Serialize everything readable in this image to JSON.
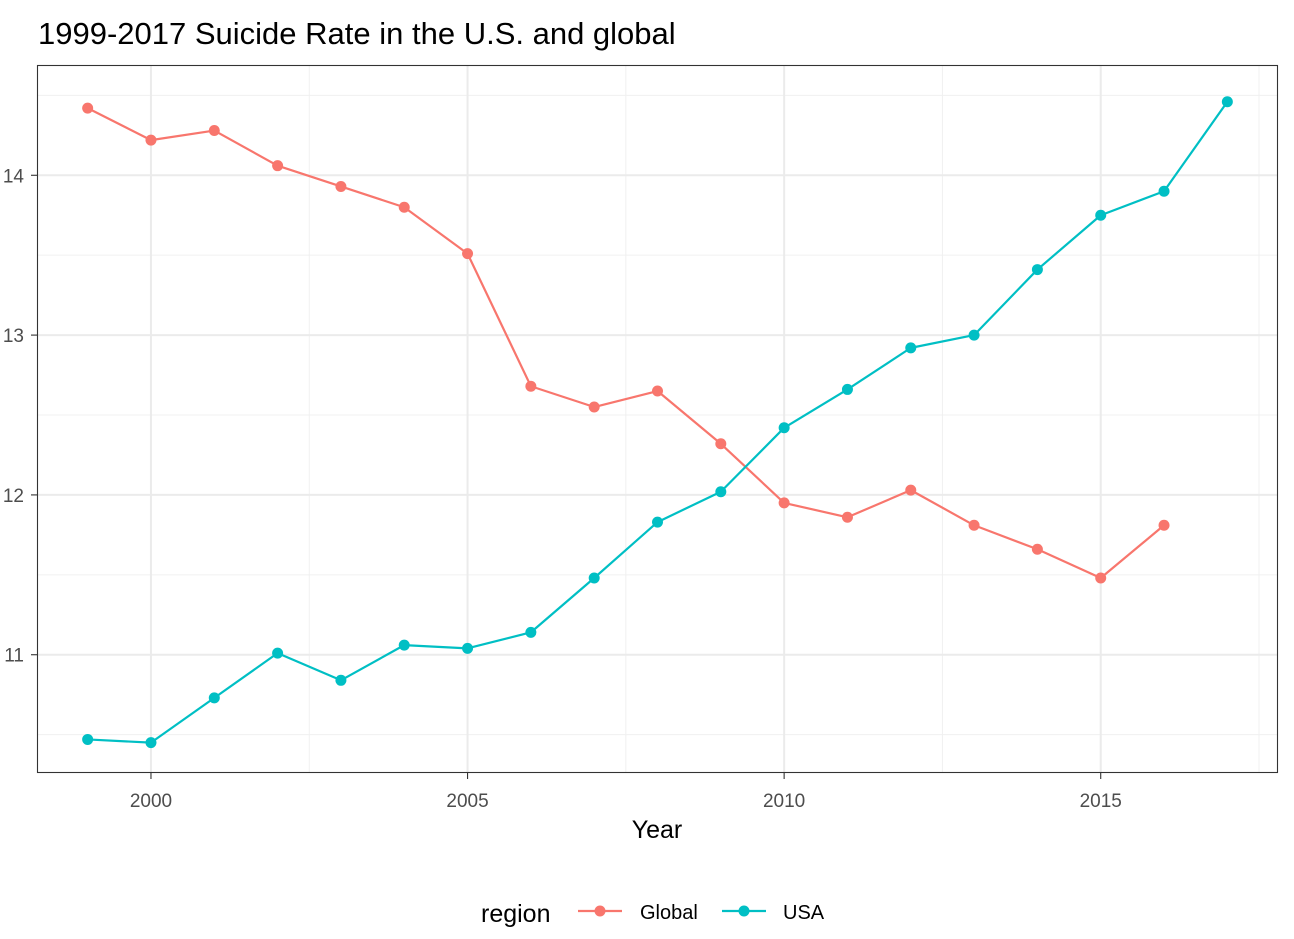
{
  "chart_data": {
    "type": "line",
    "title": "1999-2017 Suicide Rate in the U.S. and global",
    "xlabel": "Year",
    "ylabel": "",
    "xlim": [
      1998.2,
      2017.8
    ],
    "ylim": [
      10.26,
      14.69
    ],
    "x_ticks": [
      2000,
      2005,
      2010,
      2015
    ],
    "y_ticks": [
      11,
      12,
      13,
      14
    ],
    "x_tick_labels": [
      "2000",
      "2005",
      "2010",
      "2015"
    ],
    "y_tick_labels": [
      "11",
      "12",
      "13",
      "14"
    ],
    "grid": true,
    "legend": {
      "title": "region",
      "position": "bottom",
      "entries": [
        "Global",
        "USA"
      ]
    },
    "series": [
      {
        "name": "Global",
        "color": "#F8766D",
        "x": [
          1999,
          2000,
          2001,
          2002,
          2003,
          2004,
          2005,
          2006,
          2007,
          2008,
          2009,
          2010,
          2011,
          2012,
          2013,
          2014,
          2015,
          2016
        ],
        "values": [
          14.42,
          14.22,
          14.28,
          14.06,
          13.93,
          13.8,
          13.51,
          12.68,
          12.55,
          12.65,
          12.32,
          11.95,
          11.86,
          12.03,
          11.81,
          11.66,
          11.48,
          11.81
        ]
      },
      {
        "name": "USA",
        "color": "#00BFC4",
        "x": [
          1999,
          2000,
          2001,
          2002,
          2003,
          2004,
          2005,
          2006,
          2007,
          2008,
          2009,
          2010,
          2011,
          2012,
          2013,
          2014,
          2015,
          2016,
          2017
        ],
        "values": [
          10.47,
          10.45,
          10.73,
          11.01,
          10.84,
          11.06,
          11.04,
          11.14,
          11.48,
          11.83,
          12.02,
          12.42,
          12.66,
          12.92,
          13.0,
          13.41,
          13.75,
          13.9,
          14.46
        ]
      }
    ]
  }
}
